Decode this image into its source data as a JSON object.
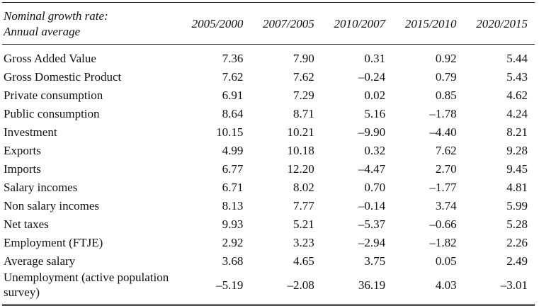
{
  "table": {
    "stub_header": [
      "Nominal growth rate:",
      "Annual average"
    ],
    "columns": [
      "2005/2000",
      "2007/2005",
      "2010/2007",
      "2015/2010",
      "2020/2015"
    ],
    "rows": [
      [
        "Gross Added Value",
        "7.36",
        "7.90",
        "0.31",
        "0.92",
        "5.44"
      ],
      [
        "Gross Domestic Product",
        "7.62",
        "7.62",
        "–0.24",
        "0.79",
        "5.43"
      ],
      [
        "Private consumption",
        "6.91",
        "7.29",
        "0.02",
        "0.85",
        "4.62"
      ],
      [
        "Public consumption",
        "8.64",
        "8.71",
        "5.16",
        "–1.78",
        "4.24"
      ],
      [
        "Investment",
        "10.15",
        "10.21",
        "–9.90",
        "–4.40",
        "8.21"
      ],
      [
        "Exports",
        "4.99",
        "10.18",
        "0.32",
        "7.62",
        "9.28"
      ],
      [
        "Imports",
        "6.77",
        "12.20",
        "–4.47",
        "2.70",
        "9.45"
      ],
      [
        "Salary incomes",
        "6.71",
        "8.02",
        "0.70",
        "–1.77",
        "4.81"
      ],
      [
        "Non salary incomes",
        "8.13",
        "7.77",
        "–0.14",
        "3.74",
        "5.99"
      ],
      [
        "Net taxes",
        "9.93",
        "5.21",
        "–5.37",
        "–0.66",
        "5.28"
      ],
      [
        "Employment (FTJE)",
        "2.92",
        "3.23",
        "–2.94",
        "–1.82",
        "2.26"
      ],
      [
        "Average salary",
        "3.68",
        "4.65",
        "3.75",
        "0.05",
        "2.49"
      ],
      [
        "Unemployment (active population survey)",
        "–5.19",
        "–2.08",
        "36.19",
        "4.03",
        "–3.01"
      ]
    ]
  }
}
